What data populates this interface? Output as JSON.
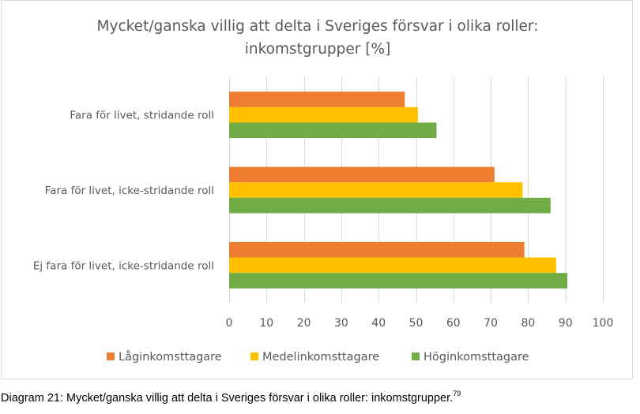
{
  "chart_data": {
    "type": "bar",
    "orientation": "horizontal",
    "title": "Mycket/ganska villig att delta i Sveriges försvar i olika roller: inkomstgrupper [%]",
    "title_lines": [
      "Mycket/ganska villig att delta i Sveriges försvar i olika roller:",
      "inkomstgrupper [%]"
    ],
    "categories": [
      "Fara för livet, stridande roll",
      "Fara för livet, icke-stridande roll",
      "Ej fara för livet, icke-stridande roll"
    ],
    "series": [
      {
        "name": "Låginkomsttagare",
        "color": "#ED7D31",
        "values": [
          47,
          71,
          79
        ]
      },
      {
        "name": "Medelinkomsttagare",
        "color": "#FFC000",
        "values": [
          50.5,
          78.5,
          87.5
        ]
      },
      {
        "name": "Höginkomsttagare",
        "color": "#70AD47",
        "values": [
          55.5,
          86,
          90.5
        ]
      }
    ],
    "xlabel": "",
    "ylabel": "",
    "xlim": [
      0,
      100
    ],
    "xticks": [
      "0",
      "10",
      "20",
      "30",
      "40",
      "50",
      "60",
      "70",
      "80",
      "90",
      "100"
    ],
    "grid": true,
    "legend_position": "bottom"
  },
  "caption": {
    "text": "Diagram 21: Mycket/ganska villig att delta i Sveriges försvar i olika roller: inkomstgrupper.",
    "footnote": "79"
  }
}
